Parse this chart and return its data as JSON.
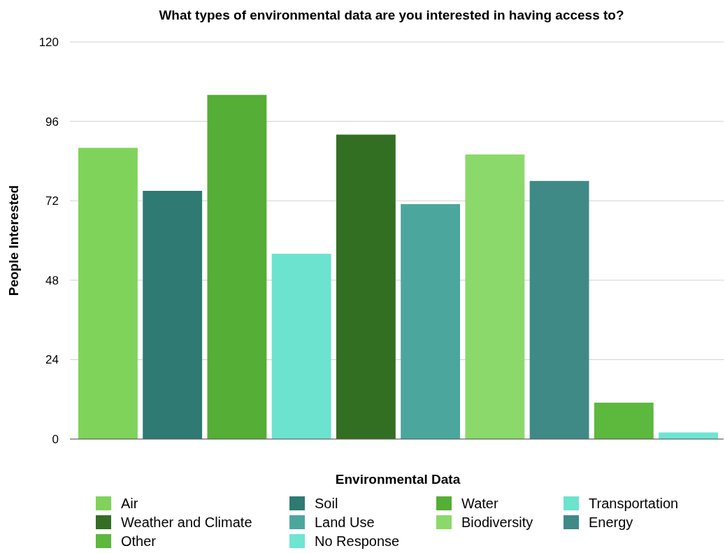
{
  "chart_data": {
    "type": "bar",
    "title": "What types of environmental data are you interested in having access to?",
    "xlabel": "Environmental Data",
    "ylabel": "People Interested",
    "categories": [
      null,
      null,
      null,
      null,
      null,
      null,
      null,
      null,
      null,
      null
    ],
    "series": [
      {
        "name": "Air",
        "color": "#7fd35a",
        "values": [
          88,
          null,
          null,
          null,
          null,
          null,
          null,
          null,
          null,
          null
        ]
      },
      {
        "name": "Soil",
        "color": "#2f7a72",
        "values": [
          null,
          75,
          null,
          null,
          null,
          null,
          null,
          null,
          null,
          null
        ]
      },
      {
        "name": "Water",
        "color": "#55ae36",
        "values": [
          null,
          null,
          104,
          null,
          null,
          null,
          null,
          null,
          null,
          null
        ]
      },
      {
        "name": "Transportation",
        "color": "#6be3cf",
        "values": [
          null,
          null,
          null,
          56,
          null,
          null,
          null,
          null,
          null,
          null
        ]
      },
      {
        "name": "Weather and Climate",
        "color": "#336f22",
        "values": [
          null,
          null,
          null,
          null,
          92,
          null,
          null,
          null,
          null,
          null
        ]
      },
      {
        "name": "Land Use",
        "color": "#4ba79e",
        "values": [
          null,
          null,
          null,
          null,
          null,
          71,
          null,
          null,
          null,
          null
        ]
      },
      {
        "name": "Biodiversity",
        "color": "#8bd96a",
        "values": [
          null,
          null,
          null,
          null,
          null,
          null,
          86,
          null,
          null,
          null
        ]
      },
      {
        "name": "Energy",
        "color": "#3f8a86",
        "values": [
          null,
          null,
          null,
          null,
          null,
          null,
          null,
          78,
          null,
          null
        ]
      },
      {
        "name": "Other",
        "color": "#5db83e",
        "values": [
          null,
          null,
          null,
          null,
          null,
          null,
          null,
          null,
          11,
          null
        ]
      },
      {
        "name": "No Response",
        "color": "#6ee5d3",
        "values": [
          null,
          null,
          null,
          null,
          null,
          null,
          null,
          null,
          null,
          2
        ]
      }
    ],
    "ylim": [
      0,
      120
    ],
    "yticks": [
      0,
      24,
      48,
      72,
      96,
      120
    ],
    "grid": "y",
    "legend": "bottom"
  }
}
